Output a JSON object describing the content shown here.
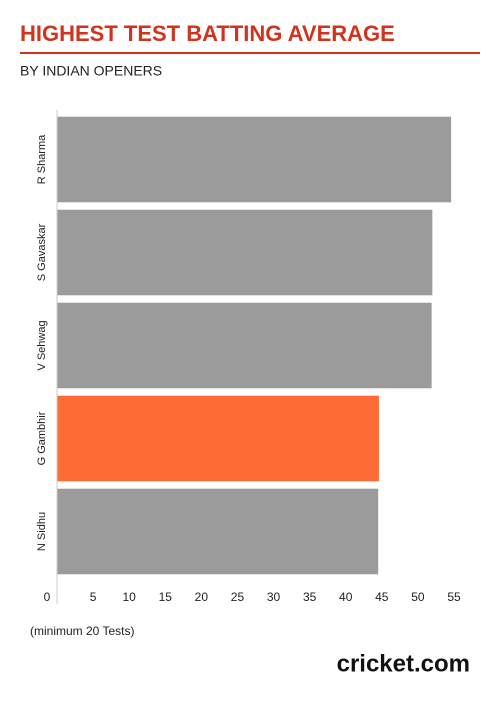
{
  "chart_data": {
    "type": "barh",
    "title": "HIGHEST TEST BATTING AVERAGE",
    "subtitle": "BY INDIAN OPENERS",
    "categories": [
      "R Sharma",
      "S Gavaskar",
      "V Sehwag",
      "G Gambhir",
      "N Sidhu"
    ],
    "values": [
      54.6,
      52.0,
      51.9,
      44.6,
      44.5
    ],
    "colors": [
      "#9b9b9b",
      "#9b9b9b",
      "#9b9b9b",
      "#ff6b35",
      "#9b9b9b"
    ],
    "xlim": [
      0,
      55
    ],
    "xticks": [
      0,
      5,
      10,
      15,
      20,
      25,
      30,
      35,
      40,
      45,
      50,
      55
    ],
    "note": "(minimum 20 Tests)",
    "logo": "cricket.com"
  }
}
